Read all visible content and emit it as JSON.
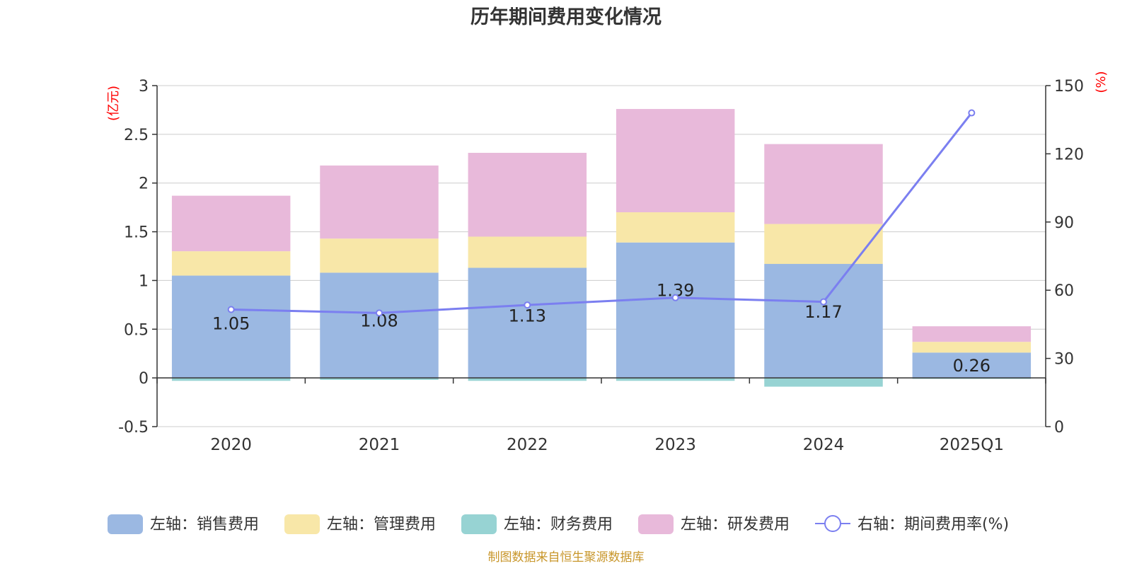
{
  "chart_data": {
    "type": "bar",
    "title": "历年期间费用变化情况",
    "categories": [
      "2020",
      "2021",
      "2022",
      "2023",
      "2024",
      "2025Q1"
    ],
    "stacked": true,
    "left_axis": {
      "unit": "(亿元)",
      "ylim": [
        -0.5,
        3
      ],
      "ticks": [
        -0.5,
        0,
        0.5,
        1,
        1.5,
        2,
        2.5,
        3
      ],
      "tick_labels": [
        "-0.5",
        "0",
        "0.5",
        "1",
        "1.5",
        "2",
        "2.5",
        "3"
      ]
    },
    "right_axis": {
      "unit": "(%)",
      "ylim": [
        0,
        150
      ],
      "ticks": [
        0,
        30,
        60,
        90,
        120,
        150
      ],
      "tick_labels": [
        "0",
        "30",
        "60",
        "90",
        "120",
        "150"
      ]
    },
    "series": [
      {
        "name": "左轴：销售费用",
        "type": "bar",
        "axis": "left",
        "color": "#9bb8e2",
        "values": [
          1.05,
          1.08,
          1.13,
          1.39,
          1.17,
          0.26
        ],
        "labels": [
          "1.05",
          "1.08",
          "1.13",
          "1.39",
          "1.17",
          "0.26"
        ]
      },
      {
        "name": "左轴：管理费用",
        "type": "bar",
        "axis": "left",
        "color": "#f8e7a8",
        "values": [
          0.25,
          0.35,
          0.32,
          0.31,
          0.41,
          0.11
        ]
      },
      {
        "name": "左轴：财务费用",
        "type": "bar",
        "axis": "left",
        "color": "#97d3d3",
        "values": [
          -0.03,
          -0.02,
          -0.03,
          -0.03,
          -0.09,
          -0.01
        ]
      },
      {
        "name": "左轴：研发费用",
        "type": "bar",
        "axis": "left",
        "color": "#e8b9da",
        "values": [
          0.57,
          0.75,
          0.86,
          1.06,
          0.82,
          0.16
        ]
      },
      {
        "name": "右轴：期间费用率(%)",
        "type": "line",
        "axis": "right",
        "color": "#7b7ff0",
        "values": [
          51.5,
          50.0,
          53.5,
          56.7,
          54.9,
          138.0
        ]
      }
    ],
    "grid": true,
    "legend_position": "bottom",
    "source": "制图数据来自恒生聚源数据库"
  }
}
